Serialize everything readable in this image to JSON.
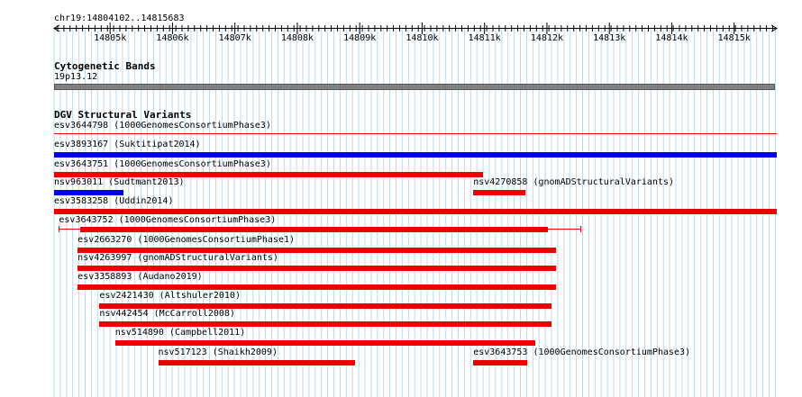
{
  "ruler": {
    "location": "chr19:14804102..14815683",
    "start": 14804102,
    "end": 14815683,
    "ticks": [
      "14805k",
      "14806k",
      "14807k",
      "14808k",
      "14809k",
      "14810k",
      "14811k",
      "14812k",
      "14813k",
      "14814k",
      "14815k"
    ]
  },
  "cytoband": {
    "title": "Cytogenetic Bands",
    "band": "19p13.12"
  },
  "variants_track": {
    "title": "DGV Structural Variants"
  },
  "colors": {
    "loss": "#ee0000",
    "gain": "#0000ee",
    "grid": "#bcd9ec",
    "cytoband": "#808080"
  },
  "features": [
    {
      "id": "esv3644798",
      "source": "(1000GenomesConsortiumPhase3)",
      "start": 14804102,
      "end": 14815683,
      "color": "loss",
      "style": "thin"
    },
    {
      "id": "esv3893167",
      "source": "(Suktitipat2014)",
      "start": 14804102,
      "end": 14815683,
      "color": "gain",
      "style": "bar"
    },
    {
      "id": "esv3643751",
      "source": "(1000GenomesConsortiumPhase3)",
      "start": 14804102,
      "end": 14810970,
      "color": "loss",
      "style": "bar"
    },
    {
      "id": "nsv963011",
      "source": "(Sudtmant2013)",
      "start": 14804102,
      "end": 14805210,
      "color": "gain",
      "style": "bar"
    },
    {
      "id": "nsv4270858",
      "source": "(gnomADStructuralVariants)",
      "start": 14810820,
      "end": 14811660,
      "color": "loss",
      "style": "bar"
    },
    {
      "id": "esv3583258",
      "source": "(Uddin2014)",
      "start": 14804102,
      "end": 14815683,
      "color": "loss",
      "style": "bar"
    },
    {
      "id": "esv3643752",
      "source": "(1000GenomesConsortiumPhase3)",
      "start": 14804180,
      "end": 14812530,
      "color": "loss",
      "style": "ci",
      "inner_start": 14804520,
      "inner_end": 14812020
    },
    {
      "id": "esv2663270",
      "source": "(1000GenomesConsortiumPhase1)",
      "start": 14804480,
      "end": 14812140,
      "color": "loss",
      "style": "bar"
    },
    {
      "id": "nsv4263997",
      "source": "(gnomADStructuralVariants)",
      "start": 14804480,
      "end": 14812140,
      "color": "loss",
      "style": "bar"
    },
    {
      "id": "esv3358893",
      "source": "(Audano2019)",
      "start": 14804480,
      "end": 14812140,
      "color": "loss",
      "style": "bar"
    },
    {
      "id": "esv2421430",
      "source": "(Altshuler2010)",
      "start": 14804830,
      "end": 14812080,
      "color": "loss",
      "style": "bar"
    },
    {
      "id": "nsv442454",
      "source": "(McCarroll2008)",
      "start": 14804830,
      "end": 14812080,
      "color": "loss",
      "style": "bar"
    },
    {
      "id": "nsv514890",
      "source": "(Campbell2011)",
      "start": 14805080,
      "end": 14811820,
      "color": "loss",
      "style": "bar"
    },
    {
      "id": "nsv517123",
      "source": "(Shaikh2009)",
      "start": 14805770,
      "end": 14808920,
      "color": "loss",
      "style": "bar"
    },
    {
      "id": "esv3643753",
      "source": "(1000GenomesConsortiumPhase3)",
      "start": 14810820,
      "end": 14811690,
      "color": "loss",
      "style": "bar"
    }
  ]
}
